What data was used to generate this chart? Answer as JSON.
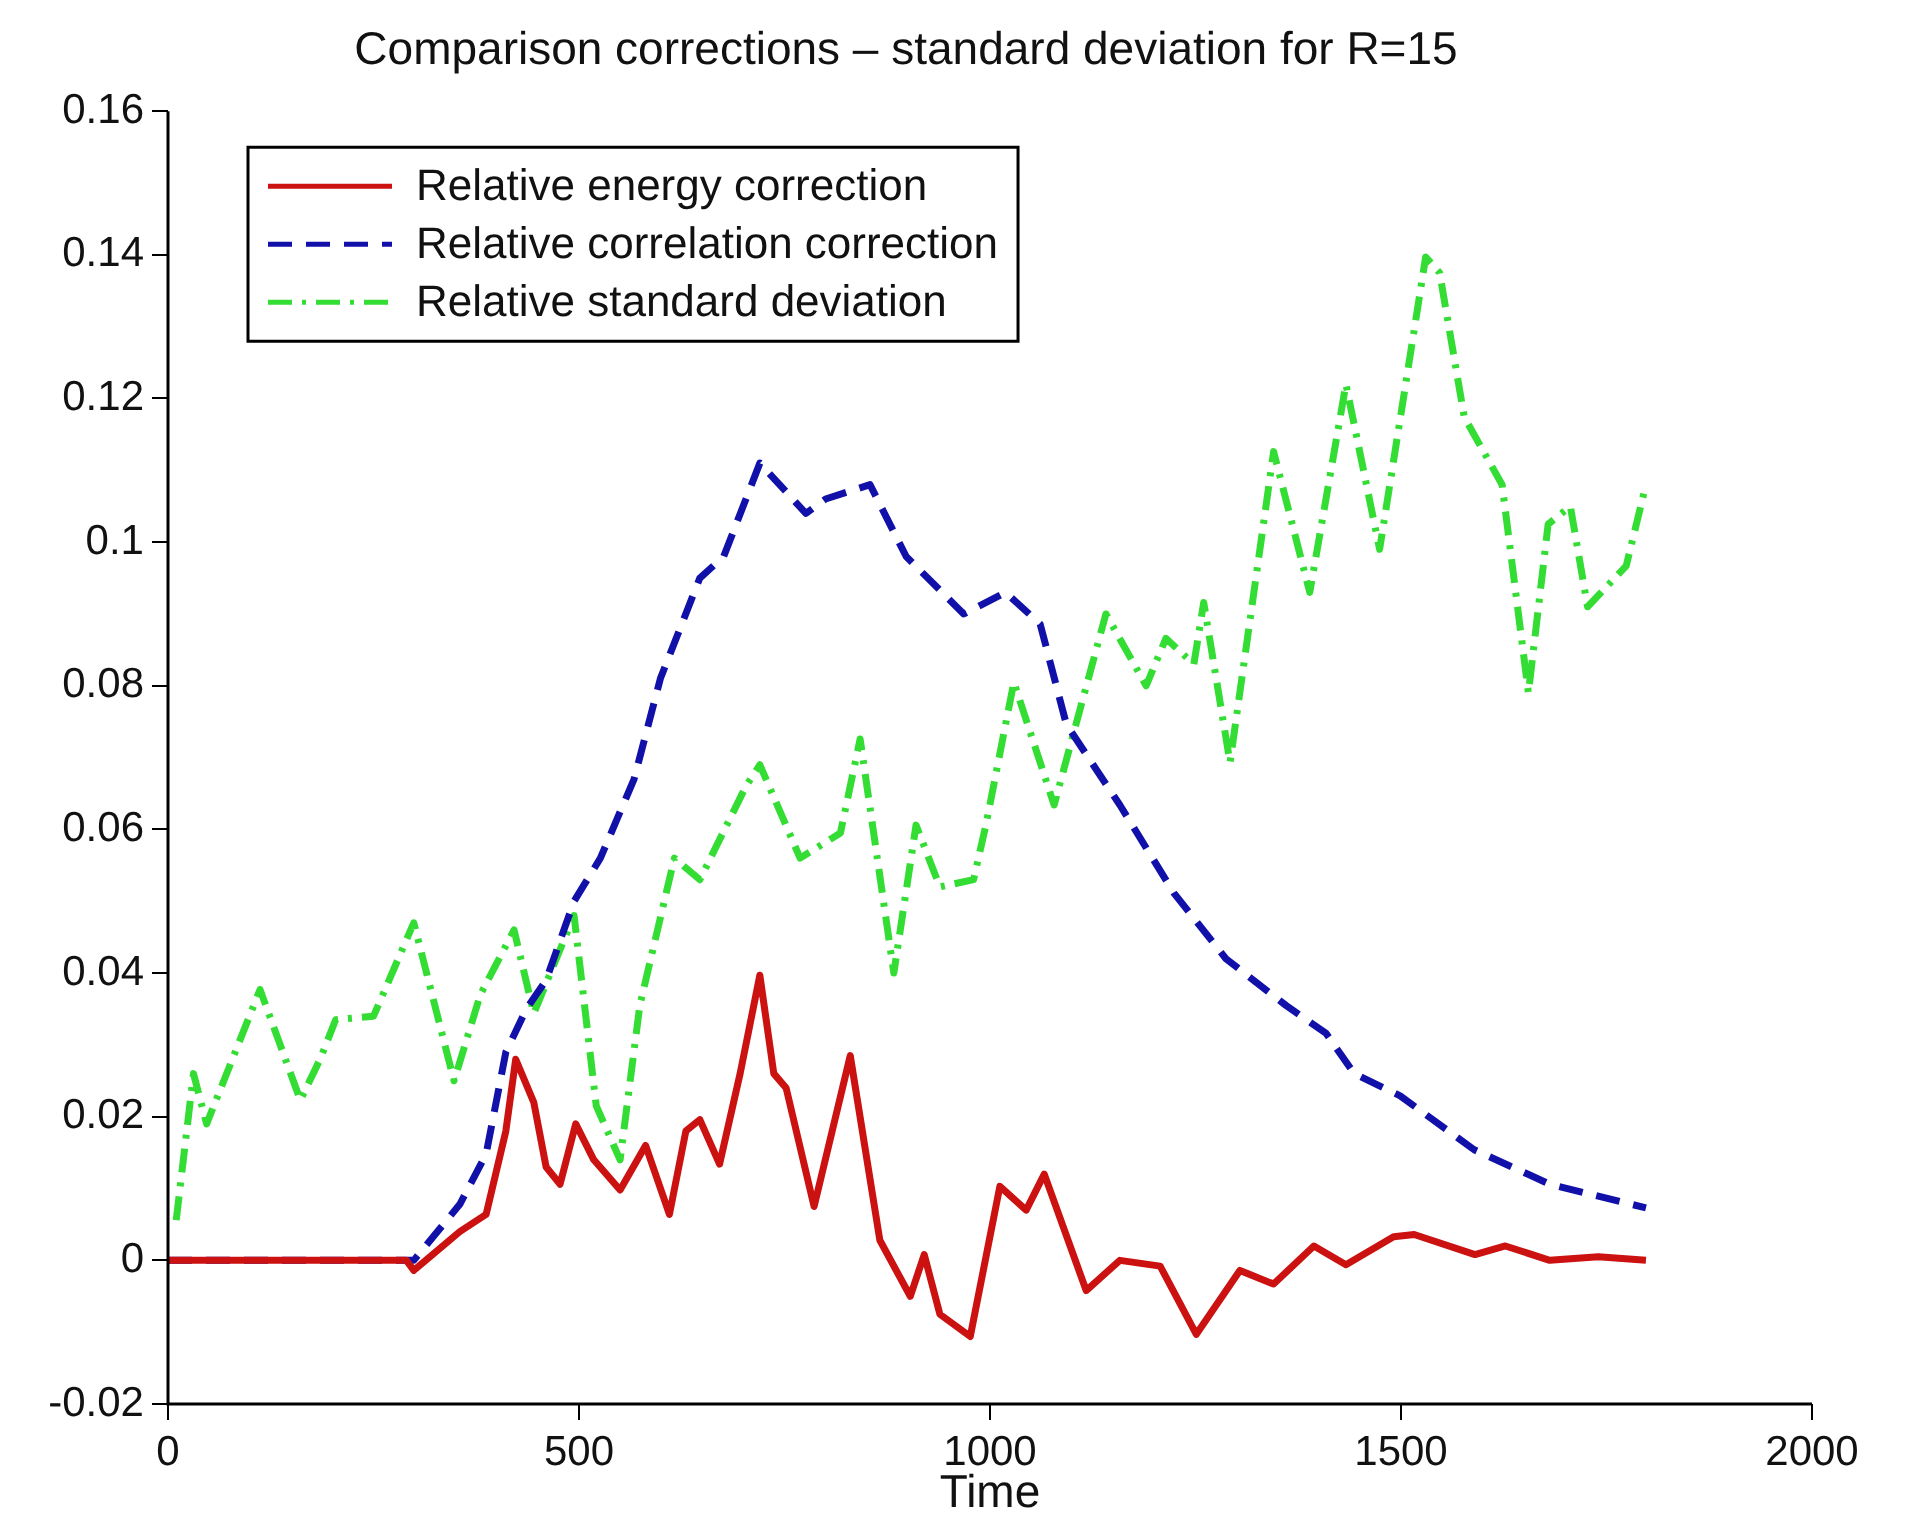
{
  "chart_data": {
    "type": "line",
    "title": "Comparison corrections – standard deviation for R=15",
    "xlabel": "Time",
    "xlim": [
      0,
      2000
    ],
    "xticks": [
      0,
      500,
      1000,
      1500,
      2000
    ],
    "ylim": [
      -0.02,
      0.16
    ],
    "yticks": [
      -0.02,
      0,
      0.02,
      0.04,
      0.06,
      0.08,
      0.1,
      0.12,
      0.14,
      0.16
    ],
    "grid": false,
    "legend": "top left",
    "marker": "none",
    "series": [
      {
        "name": "Relative energy correction",
        "color": "#cc1111",
        "line_style": "solid",
        "x": [
          0,
          290,
          299,
          355,
          387,
          411,
          423,
          445,
          460,
          477,
          496,
          518,
          550,
          581,
          610,
          630,
          647,
          671,
          696,
          720,
          737,
          752,
          786,
          830,
          866,
          903,
          920,
          939,
          976,
          1012,
          1044,
          1066,
          1117,
          1158,
          1207,
          1251,
          1304,
          1345,
          1394,
          1433,
          1491,
          1516,
          1590,
          1627,
          1681,
          1740,
          1798
        ],
        "values": [
          0,
          0,
          -0.0014,
          0.004,
          0.0064,
          0.018,
          0.028,
          0.022,
          0.013,
          0.0106,
          0.019,
          0.014,
          0.0098,
          0.016,
          0.0064,
          0.018,
          0.0196,
          0.0134,
          0.026,
          0.0397,
          0.026,
          0.024,
          0.0075,
          0.0285,
          0.0028,
          -0.005,
          0.0008,
          -0.0075,
          -0.0106,
          0.0103,
          0.007,
          0.012,
          -0.0042,
          0,
          -0.0008,
          -0.0103,
          -0.0014,
          -0.0033,
          0.002,
          -0.0006,
          0.0033,
          0.0036,
          0.0008,
          0.002,
          0,
          0.0005,
          0
        ]
      },
      {
        "name": "Relative correlation correction",
        "color": "#1111aa",
        "line_style": "dashed",
        "x": [
          0,
          290,
          299,
          355,
          387,
          411,
          436,
          460,
          494,
          526,
          567,
          599,
          647,
          676,
          720,
          776,
          800,
          854,
          898,
          968,
          1019,
          1061,
          1093,
          1158,
          1224,
          1287,
          1360,
          1409,
          1443,
          1499,
          1589,
          1681,
          1798
        ],
        "values": [
          0,
          0,
          0,
          0.0078,
          0.0148,
          0.029,
          0.035,
          0.039,
          0.05,
          0.056,
          0.067,
          0.081,
          0.095,
          0.098,
          0.111,
          0.104,
          0.106,
          0.108,
          0.098,
          0.09,
          0.093,
          0.0886,
          0.0746,
          0.0634,
          0.0511,
          0.042,
          0.0355,
          0.0316,
          0.026,
          0.0229,
          0.0154,
          0.0106,
          0.0073
        ]
      },
      {
        "name": "Relative standard deviation",
        "color": "#33dd33",
        "line_style": "dashdot",
        "x": [
          10,
          31,
          47,
          112,
          161,
          185,
          204,
          250,
          299,
          348,
          380,
          421,
          445,
          494,
          521,
          550,
          574,
          616,
          647,
          703,
          720,
          769,
          818,
          842,
          883,
          910,
          939,
          980,
          995,
          1029,
          1078,
          1141,
          1190,
          1214,
          1248,
          1260,
          1292,
          1345,
          1389,
          1433,
          1474,
          1530,
          1547,
          1577,
          1623,
          1655,
          1679,
          1706,
          1727,
          1774,
          1798
        ],
        "values": [
          0.0056,
          0.026,
          0.019,
          0.0377,
          0.0223,
          0.028,
          0.0335,
          0.034,
          0.047,
          0.025,
          0.037,
          0.046,
          0.0344,
          0.048,
          0.0215,
          0.014,
          0.0355,
          0.056,
          0.053,
          0.066,
          0.069,
          0.056,
          0.0595,
          0.0726,
          0.04,
          0.0606,
          0.052,
          0.053,
          0.0606,
          0.0805,
          0.0634,
          0.09,
          0.08,
          0.0866,
          0.083,
          0.0916,
          0.0693,
          0.1126,
          0.093,
          0.122,
          0.099,
          0.1397,
          0.1375,
          0.1174,
          0.108,
          0.079,
          0.1025,
          0.105,
          0.091,
          0.0967,
          0.108
        ]
      }
    ]
  }
}
